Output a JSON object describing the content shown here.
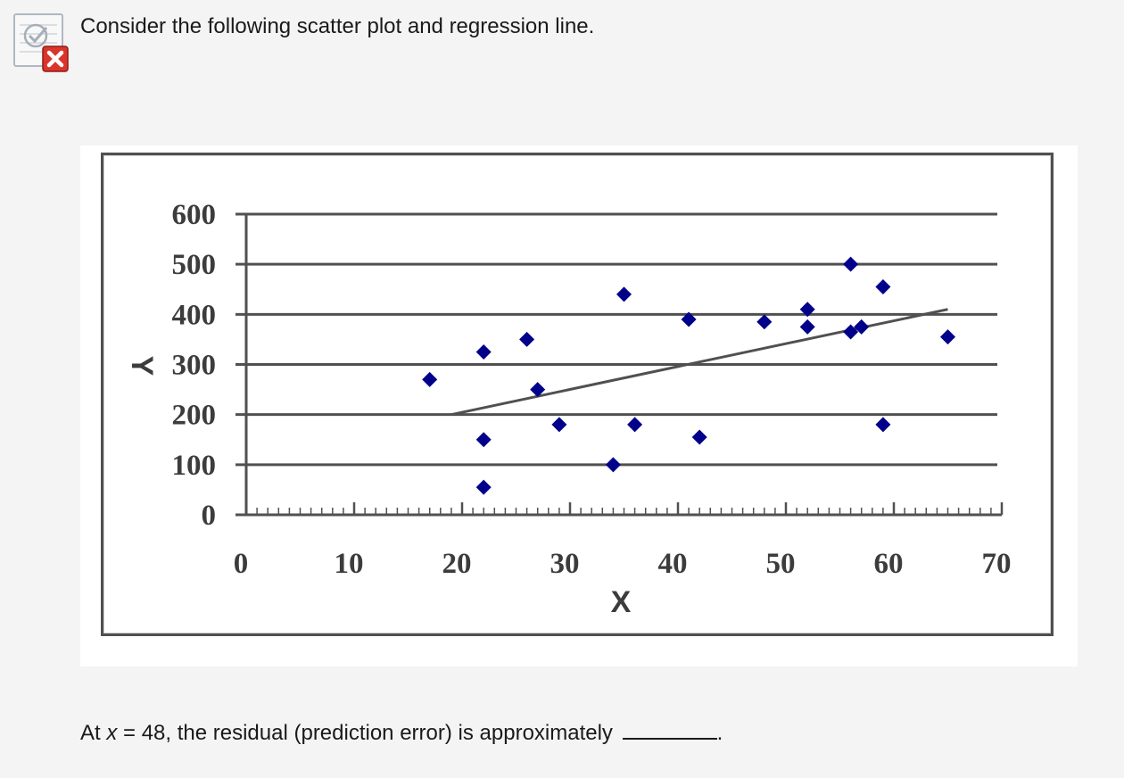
{
  "question": {
    "status": "incorrect",
    "status_icon": "incorrect-x-icon",
    "prompt_text": "Consider the following scatter plot and regression line.",
    "sub_prompt": {
      "before": "At ",
      "variable": "x",
      "after": " = 48, the residual (prediction error) is approximately",
      "trailing": "."
    }
  },
  "colors": {
    "point": "#00008b",
    "gridline": "#505050",
    "regression_line": "#505050",
    "status_red": "#d9352b"
  },
  "chart_data": {
    "type": "scatter",
    "xlabel": "X",
    "ylabel": "Y",
    "xlim": [
      0,
      70
    ],
    "ylim": [
      0,
      600
    ],
    "xticks": [
      0,
      10,
      20,
      30,
      40,
      50,
      60,
      70
    ],
    "yticks": [
      0,
      100,
      200,
      300,
      400,
      500,
      600
    ],
    "grid": "horizontal",
    "legend": "none",
    "points": [
      {
        "x": 17,
        "y": 270
      },
      {
        "x": 22,
        "y": 325
      },
      {
        "x": 22,
        "y": 150
      },
      {
        "x": 22,
        "y": 55
      },
      {
        "x": 26,
        "y": 350
      },
      {
        "x": 27,
        "y": 250
      },
      {
        "x": 29,
        "y": 180
      },
      {
        "x": 34,
        "y": 100
      },
      {
        "x": 35,
        "y": 440
      },
      {
        "x": 36,
        "y": 180
      },
      {
        "x": 41,
        "y": 390
      },
      {
        "x": 42,
        "y": 155
      },
      {
        "x": 48,
        "y": 385
      },
      {
        "x": 52,
        "y": 410
      },
      {
        "x": 52,
        "y": 375
      },
      {
        "x": 56,
        "y": 500
      },
      {
        "x": 56,
        "y": 365
      },
      {
        "x": 57,
        "y": 375
      },
      {
        "x": 59,
        "y": 455
      },
      {
        "x": 59,
        "y": 180
      },
      {
        "x": 65,
        "y": 355
      }
    ],
    "regression_line": {
      "x": [
        19,
        65
      ],
      "y": [
        200,
        410
      ]
    }
  }
}
